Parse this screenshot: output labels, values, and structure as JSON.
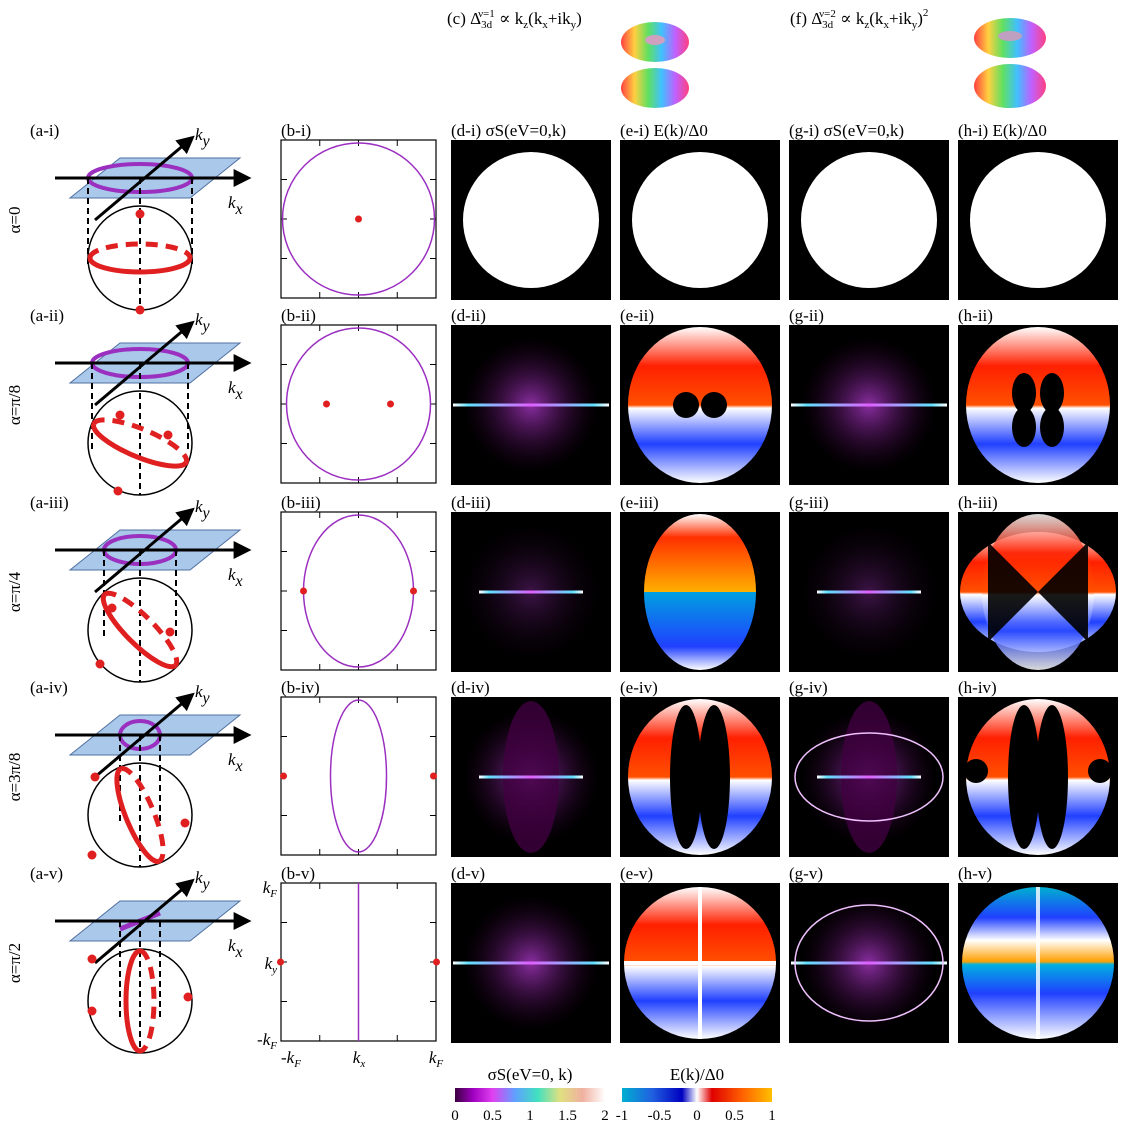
{
  "headers": {
    "c": {
      "prefix": "(c)",
      "rest": "∝ k",
      "math": "z(kx+iky)"
    },
    "f": {
      "prefix": "(f)",
      "rest": "∝ k",
      "math": "z(kx+iky)2"
    },
    "c_text": "(c) Δ3d^{ν=1} ∝ kz(kx+iky)",
    "f_text": "(f) Δ3d^{ν=2} ∝ kz(kx+iky)^2"
  },
  "alphas": [
    "α=0",
    "α=π/8",
    "α=π/4",
    "α=3π/8",
    "α=π/2"
  ],
  "rows": [
    {
      "a": "(a-i)",
      "b": "(b-i)",
      "d": "(d-i) σS(eV=0,k)",
      "e": "(e-i) E(k)/Δ0",
      "g": "(g-i) σS(eV=0,k)",
      "h": "(h-i) E(k)/Δ0"
    },
    {
      "a": "(a-ii)",
      "b": "(b-ii)",
      "d": "(d-ii)",
      "e": "(e-ii)",
      "g": "(g-ii)",
      "h": "(h-ii)"
    },
    {
      "a": "(a-iii)",
      "b": "(b-iii)",
      "d": "(d-iii)",
      "e": "(e-iii)",
      "g": "(g-iii)",
      "h": "(h-iii)"
    },
    {
      "a": "(a-iv)",
      "b": "(b-iv)",
      "d": "(d-iv)",
      "e": "(e-iv)",
      "g": "(g-iv)",
      "h": "(h-iv)"
    },
    {
      "a": "(a-v)",
      "b": "(b-v)",
      "d": "(d-v)",
      "e": "(e-v)",
      "g": "(g-v)",
      "h": "(h-v)"
    }
  ],
  "axes": {
    "kx": "kx",
    "ky": "ky",
    "kF": "kF",
    "mkF": "-kF"
  },
  "colorbars": {
    "sigma": {
      "label": "σS(eV=0, k)",
      "ticks": [
        "0",
        "0.5",
        "1",
        "1.5",
        "2"
      ],
      "range": [
        0,
        2
      ]
    },
    "energy": {
      "label": "E(k)/Δ0",
      "ticks": [
        "-1",
        "-0.5",
        "0",
        "0.5",
        "1"
      ],
      "range": [
        -1,
        1
      ]
    }
  },
  "colors": {
    "fermi": "#9b30c0",
    "node": "#e02020",
    "plane": "#a9c8ea",
    "bg": "#000000"
  }
}
